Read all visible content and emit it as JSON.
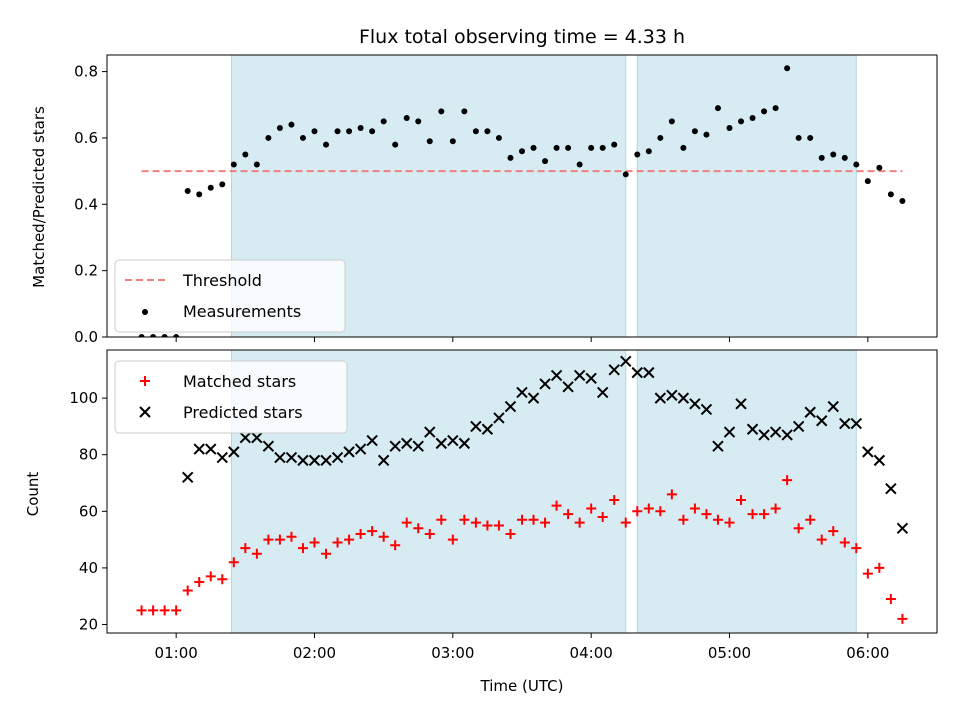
{
  "chart_data": [
    {
      "type": "scatter",
      "title": "Flux total observing time = 4.33 h",
      "xlabel": "",
      "ylabel": "Matched/Predicted stars",
      "xlim": [
        "00:30",
        "06:30"
      ],
      "ylim": [
        0,
        0.85
      ],
      "y_ticks": [
        0.0,
        0.2,
        0.4,
        0.6,
        0.8
      ],
      "y_tick_labels": [
        "0.0",
        "0.2",
        "0.4",
        "0.6",
        "0.8"
      ],
      "grid": false,
      "legend_position": "lower left",
      "shaded_intervals": [
        [
          "01:24",
          "04:15"
        ],
        [
          "04:20",
          "05:55"
        ]
      ],
      "shade_color": "#add8e6",
      "threshold": {
        "name": "Threshold",
        "value": 0.5,
        "x_range": [
          "00:45",
          "06:15"
        ],
        "color": "#f08080",
        "style": "dashed"
      },
      "series": [
        {
          "name": "Measurements",
          "color": "#000000",
          "x": [
            "00:45",
            "00:50",
            "00:55",
            "01:00",
            "01:05",
            "01:10",
            "01:15",
            "01:20",
            "01:25",
            "01:30",
            "01:35",
            "01:40",
            "01:45",
            "01:50",
            "01:55",
            "02:00",
            "02:05",
            "02:10",
            "02:15",
            "02:20",
            "02:25",
            "02:30",
            "02:35",
            "02:40",
            "02:45",
            "02:50",
            "02:55",
            "03:00",
            "03:05",
            "03:10",
            "03:15",
            "03:20",
            "03:25",
            "03:30",
            "03:35",
            "03:40",
            "03:45",
            "03:50",
            "03:55",
            "04:00",
            "04:05",
            "04:10",
            "04:15",
            "04:20",
            "04:25",
            "04:30",
            "04:35",
            "04:40",
            "04:45",
            "04:50",
            "04:55",
            "05:00",
            "05:05",
            "05:10",
            "05:15",
            "05:20",
            "05:25",
            "05:30",
            "05:35",
            "05:40",
            "05:45",
            "05:50",
            "05:55",
            "06:00",
            "06:05",
            "06:10",
            "06:15"
          ],
          "y": [
            0.0,
            0.0,
            0.0,
            0.0,
            0.44,
            0.43,
            0.45,
            0.46,
            0.52,
            0.55,
            0.52,
            0.6,
            0.63,
            0.64,
            0.6,
            0.62,
            0.58,
            0.62,
            0.62,
            0.63,
            0.62,
            0.65,
            0.58,
            0.66,
            0.65,
            0.59,
            0.68,
            0.59,
            0.68,
            0.62,
            0.62,
            0.6,
            0.54,
            0.56,
            0.57,
            0.53,
            0.57,
            0.57,
            0.52,
            0.57,
            0.57,
            0.58,
            0.49,
            0.55,
            0.56,
            0.6,
            0.65,
            0.57,
            0.62,
            0.61,
            0.69,
            0.63,
            0.65,
            0.66,
            0.68,
            0.69,
            0.81,
            0.6,
            0.6,
            0.54,
            0.55,
            0.54,
            0.52,
            0.47,
            0.51,
            0.43,
            0.41
          ]
        }
      ]
    },
    {
      "type": "scatter",
      "title": "",
      "xlabel": "Time (UTC)",
      "ylabel": "Count",
      "xlim": [
        "00:30",
        "06:30"
      ],
      "ylim": [
        17,
        117
      ],
      "x_ticks": [
        "01:00",
        "02:00",
        "03:00",
        "04:00",
        "05:00",
        "06:00"
      ],
      "y_ticks": [
        20,
        40,
        60,
        80,
        100
      ],
      "grid": false,
      "legend_position": "upper left",
      "shaded_intervals": [
        [
          "01:24",
          "04:15"
        ],
        [
          "04:20",
          "05:55"
        ]
      ],
      "shade_color": "#add8e6",
      "series": [
        {
          "name": "Matched stars",
          "marker": "+",
          "color": "#ff0000",
          "x": [
            "00:45",
            "00:50",
            "00:55",
            "01:00",
            "01:05",
            "01:10",
            "01:15",
            "01:20",
            "01:25",
            "01:30",
            "01:35",
            "01:40",
            "01:45",
            "01:50",
            "01:55",
            "02:00",
            "02:05",
            "02:10",
            "02:15",
            "02:20",
            "02:25",
            "02:30",
            "02:35",
            "02:40",
            "02:45",
            "02:50",
            "02:55",
            "03:00",
            "03:05",
            "03:10",
            "03:15",
            "03:20",
            "03:25",
            "03:30",
            "03:35",
            "03:40",
            "03:45",
            "03:50",
            "03:55",
            "04:00",
            "04:05",
            "04:10",
            "04:15",
            "04:20",
            "04:25",
            "04:30",
            "04:35",
            "04:40",
            "04:45",
            "04:50",
            "04:55",
            "05:00",
            "05:05",
            "05:10",
            "05:15",
            "05:20",
            "05:25",
            "05:30",
            "05:35",
            "05:40",
            "05:45",
            "05:50",
            "05:55",
            "06:00",
            "06:05",
            "06:10",
            "06:15"
          ],
          "y": [
            25,
            25,
            25,
            25,
            32,
            35,
            37,
            36,
            42,
            47,
            45,
            50,
            50,
            51,
            47,
            49,
            45,
            49,
            50,
            52,
            53,
            51,
            48,
            56,
            54,
            52,
            57,
            50,
            57,
            56,
            55,
            55,
            52,
            57,
            57,
            56,
            62,
            59,
            56,
            61,
            58,
            64,
            56,
            60,
            61,
            60,
            66,
            57,
            61,
            59,
            57,
            56,
            64,
            59,
            59,
            61,
            71,
            54,
            57,
            50,
            53,
            49,
            47,
            38,
            40,
            29,
            22
          ]
        },
        {
          "name": "Predicted stars",
          "marker": "x",
          "color": "#000000",
          "x": [
            "01:05",
            "01:10",
            "01:15",
            "01:20",
            "01:25",
            "01:30",
            "01:35",
            "01:40",
            "01:45",
            "01:50",
            "01:55",
            "02:00",
            "02:05",
            "02:10",
            "02:15",
            "02:20",
            "02:25",
            "02:30",
            "02:35",
            "02:40",
            "02:45",
            "02:50",
            "02:55",
            "03:00",
            "03:05",
            "03:10",
            "03:15",
            "03:20",
            "03:25",
            "03:30",
            "03:35",
            "03:40",
            "03:45",
            "03:50",
            "03:55",
            "04:00",
            "04:05",
            "04:10",
            "04:15",
            "04:20",
            "04:25",
            "04:30",
            "04:35",
            "04:40",
            "04:45",
            "04:50",
            "04:55",
            "05:00",
            "05:05",
            "05:10",
            "05:15",
            "05:20",
            "05:25",
            "05:30",
            "05:35",
            "05:40",
            "05:45",
            "05:50",
            "05:55",
            "06:00",
            "06:05",
            "06:10",
            "06:15"
          ],
          "y": [
            72,
            82,
            82,
            79,
            81,
            86,
            86,
            83,
            79,
            79,
            78,
            78,
            78,
            79,
            81,
            82,
            85,
            78,
            83,
            84,
            83,
            88,
            84,
            85,
            84,
            90,
            89,
            93,
            97,
            102,
            100,
            105,
            108,
            104,
            108,
            107,
            102,
            110,
            113,
            109,
            109,
            100,
            101,
            100,
            98,
            96,
            83,
            88,
            98,
            89,
            87,
            88,
            87,
            90,
            95,
            92,
            97,
            91,
            91,
            81,
            78,
            68,
            54
          ]
        }
      ]
    }
  ]
}
